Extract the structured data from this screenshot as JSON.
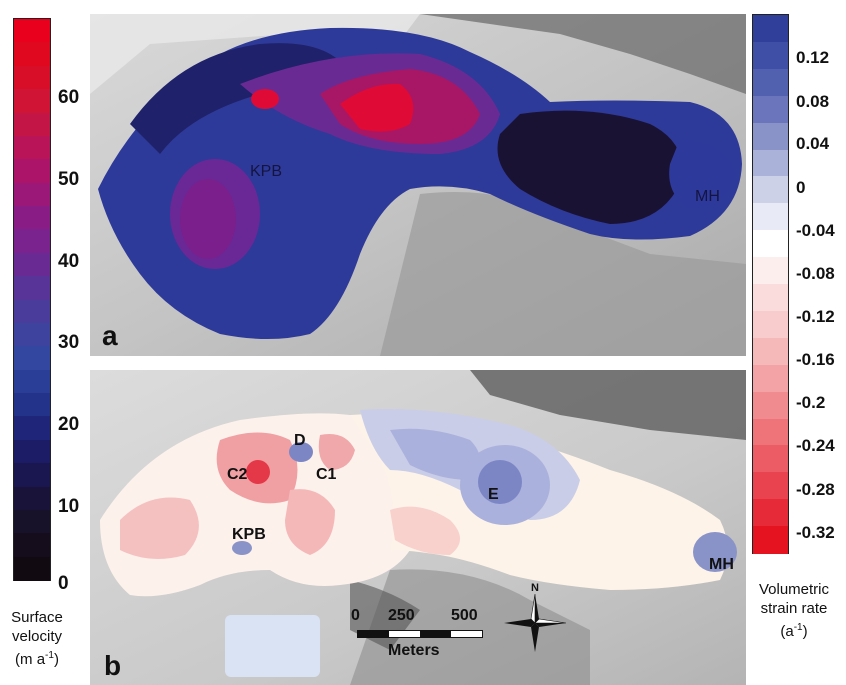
{
  "left_colorbar": {
    "title_line1": "Surface",
    "title_line2": "velocity",
    "unit": "(m a",
    "unit_sup": "-1",
    "unit_close": ")",
    "ticks": [
      "60",
      "50",
      "40",
      "30",
      "20",
      "10",
      "0"
    ],
    "colors": [
      "#e8001c",
      "#e0081f",
      "#d80e28",
      "#cf1436",
      "#c41646",
      "#b81457",
      "#ab1468",
      "#9b1878",
      "#8a1c86",
      "#7a228e",
      "#692a94",
      "#583398",
      "#4a3c9a",
      "#3e439e",
      "#3346a0",
      "#2a3e98",
      "#24338a",
      "#1f267a",
      "#1c1c66",
      "#1a1650",
      "#191339",
      "#18112a",
      "#150d1c",
      "#110a10"
    ]
  },
  "right_colorbar": {
    "title_line1": "Volumetric",
    "title_line2": "strain rate",
    "unit": "(a",
    "unit_sup": "-1",
    "unit_close": ")",
    "ticks": [
      "0.12",
      "0.08",
      "0.04",
      "0",
      "-0.04",
      "-0.08",
      "-0.12",
      "-0.16",
      "-0.2",
      "-0.24",
      "-0.28",
      "-0.32"
    ],
    "colors": [
      "#2f3f9a",
      "#3f4fa6",
      "#5260b0",
      "#6a75bc",
      "#8a93c8",
      "#abb2d9",
      "#cdd1e8",
      "#e8eaf5",
      "#ffffff",
      "#fdeeee",
      "#fadcdc",
      "#f8cccc",
      "#f5b9b9",
      "#f3a3a5",
      "#f08c90",
      "#ee747a",
      "#eb5c64",
      "#e8434e",
      "#e62a37",
      "#e5131f"
    ]
  },
  "panel_a": {
    "label": "a",
    "sites": [
      "KPB",
      "MH"
    ]
  },
  "panel_b": {
    "label": "b",
    "sites": [
      "D",
      "C2",
      "C1",
      "E",
      "KPB",
      "MH"
    ]
  },
  "scale_bar": {
    "ticks": [
      "0",
      "250",
      "500"
    ],
    "unit": "Meters"
  },
  "north_arrow": {
    "label": "N"
  }
}
